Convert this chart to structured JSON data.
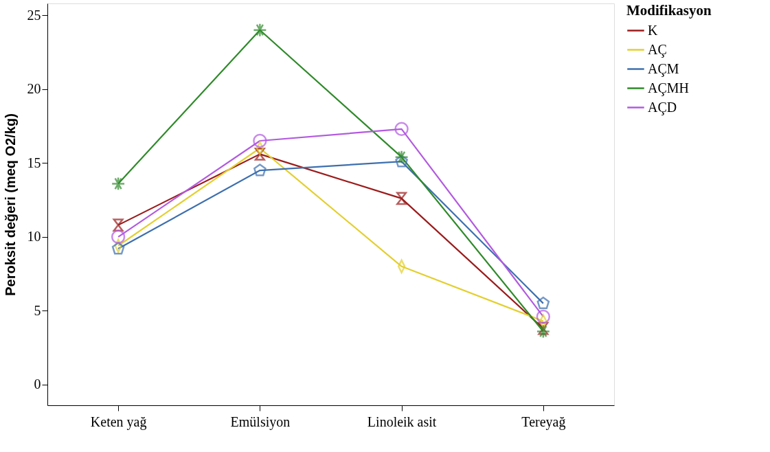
{
  "chart_data": {
    "type": "line",
    "ylabel": "Peroksit değeri (meq O2/kg)",
    "legend_title": "Modifikasyon",
    "legend": "right",
    "grid": false,
    "categories": [
      "Keten yağ",
      "Emülsiyon",
      "Linoleik asit",
      "Tereyağ"
    ],
    "ylim": [
      -1.4,
      25.8
    ],
    "yticks": [
      0,
      5,
      10,
      15,
      20,
      25
    ],
    "series": [
      {
        "name": "K",
        "color": "#9b1b1b",
        "marker": "triangle",
        "values": [
          10.8,
          15.6,
          12.6,
          3.8
        ]
      },
      {
        "name": "AÇ",
        "color": "#e3cf2f",
        "marker": "diamond",
        "values": [
          9.4,
          16.0,
          8.0,
          4.3
        ]
      },
      {
        "name": "AÇM",
        "color": "#3d6fae",
        "marker": "square",
        "values": [
          9.2,
          14.5,
          15.1,
          5.5
        ]
      },
      {
        "name": "AÇMH",
        "color": "#2f8a2a",
        "marker": "cross",
        "values": [
          13.6,
          24.0,
          15.4,
          3.6
        ]
      },
      {
        "name": "AÇD",
        "color": "#b25ae0",
        "marker": "circle",
        "values": [
          10.0,
          16.5,
          17.3,
          4.6
        ]
      }
    ]
  }
}
